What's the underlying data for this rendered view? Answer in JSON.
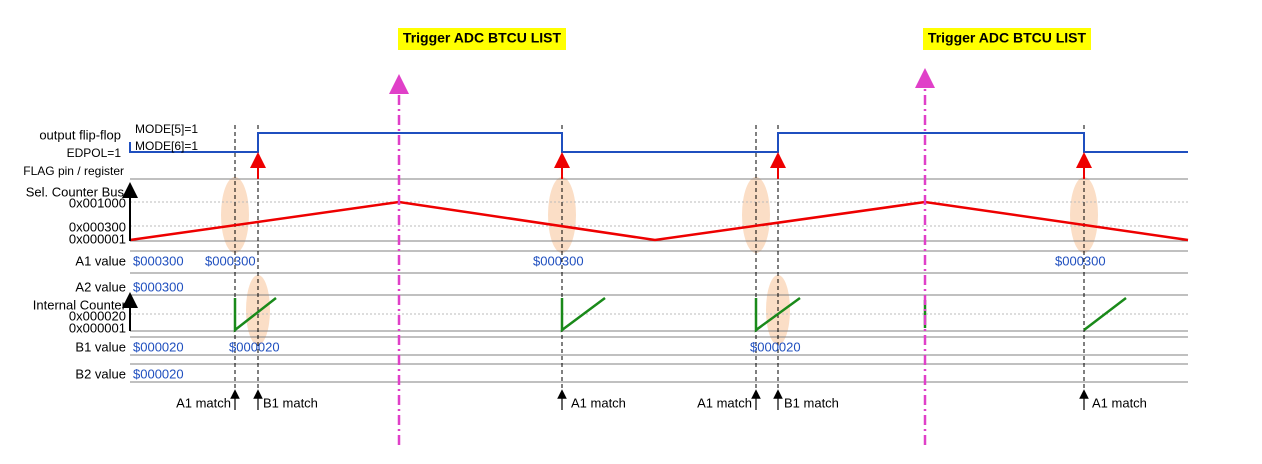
{
  "triggers": [
    "Trigger ADC BTCU LIST",
    "Trigger ADC BTCU LIST"
  ],
  "signals": {
    "output_flip_flop": "output flip-flop",
    "edpol": "EDPOL=1",
    "mode5": "MODE[5]=1",
    "mode6": "MODE[6]=1",
    "flag": "FLAG pin / register",
    "sel_counter_bus": "Sel. Counter Bus",
    "bus_ticks": [
      "0x001000",
      "0x000300",
      "0x000001"
    ],
    "a1_value": "A1 value",
    "a2_value": "A2 value",
    "internal_counter": "Internal Counter",
    "counter_ticks": [
      "0x000020",
      "0x000001"
    ],
    "b1_value": "B1 value",
    "b2_value": "B2 value"
  },
  "a1_values": [
    "$000300",
    "$000300",
    "$000300",
    "$000300"
  ],
  "a2_values": [
    "$000300"
  ],
  "b1_values": [
    "$000020",
    "$000020",
    "$000020"
  ],
  "b2_values": [
    "$000020"
  ],
  "matches": [
    "A1 match",
    "B1 match",
    "A1 match",
    "A1 match",
    "B1 match",
    "A1 match"
  ]
}
